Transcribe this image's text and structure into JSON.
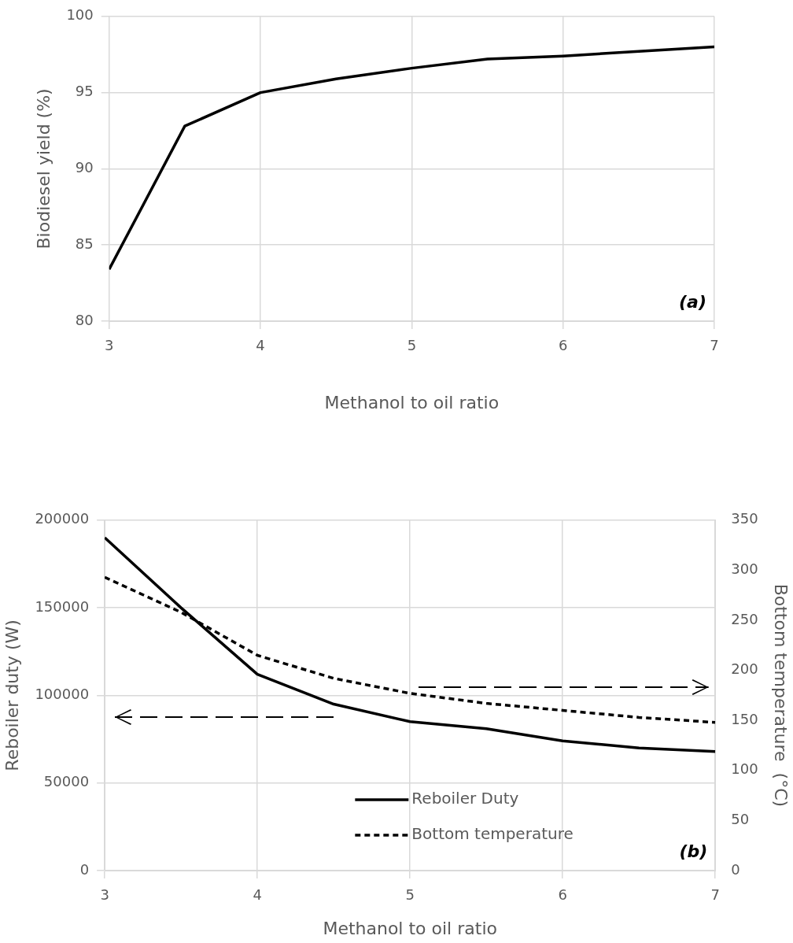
{
  "chart_data": [
    {
      "type": "line",
      "xlabel": "Methanol to oil ratio",
      "ylabel": "Biodiesel yield (%)",
      "annotations": [
        "(a)"
      ],
      "xlim": [
        3,
        7
      ],
      "xticks": [
        3,
        4,
        5,
        6,
        7
      ],
      "ylim": [
        80,
        100
      ],
      "yticks": [
        80,
        85,
        90,
        95,
        100
      ],
      "grid": true,
      "line_style": "solid",
      "series": [
        {
          "color": "#000000",
          "x": [
            3,
            3.5,
            4,
            4.5,
            5,
            5.5,
            6,
            6.5,
            7
          ],
          "values": [
            83.4,
            92.8,
            95,
            95.9,
            96.6,
            97.2,
            97.4,
            97.7,
            98
          ]
        }
      ]
    },
    {
      "type": "line",
      "xlabel": "Methanol to oil ratio",
      "ylabel": "Reboiler duty (W)",
      "y2label": "Bottom temperature  (°C)",
      "annotations": [
        "(b)"
      ],
      "xlim": [
        3,
        7
      ],
      "xticks": [
        3,
        4,
        5,
        6,
        7
      ],
      "ylim": [
        0,
        200000
      ],
      "yticks": [
        0,
        50000,
        100000,
        150000,
        200000
      ],
      "y2lim": [
        0,
        350
      ],
      "y2ticks": [
        0,
        50,
        100,
        150,
        200,
        250,
        300,
        350
      ],
      "grid": true,
      "legend": "bottom",
      "series": [
        {
          "name": "Reboiler Duty",
          "color": "#000000",
          "line_style": "solid",
          "x": [
            3,
            3.5,
            4,
            4.5,
            5,
            5.5,
            6,
            6.5,
            7
          ],
          "values": [
            190000,
            150000,
            112000,
            95000,
            85000,
            81000,
            74000,
            70000,
            68000
          ]
        },
        {
          "name": "Bottom temperature",
          "color": "#000000",
          "line_style": "dashed",
          "axis": "y2",
          "x": [
            3,
            3.5,
            4,
            4.5,
            5,
            5.5,
            6,
            6.5,
            7
          ],
          "values": [
            293,
            258,
            215,
            192,
            177,
            167,
            160,
            153,
            148
          ]
        }
      ]
    }
  ]
}
